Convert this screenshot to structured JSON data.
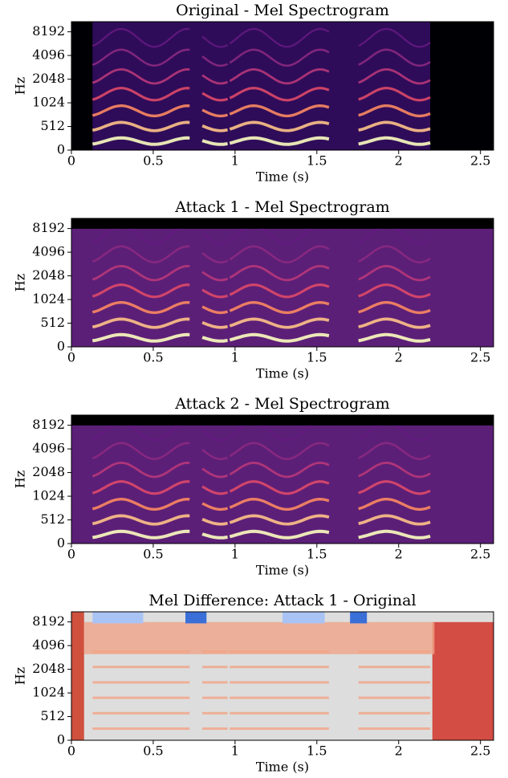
{
  "chart_data": [
    {
      "type": "spectrogram",
      "cmap": "magma",
      "title": "Original - Mel Spectrogram",
      "xlabel": "Time (s)",
      "ylabel": "Hz",
      "xlim": [
        0,
        2.58
      ],
      "xticks": [
        0,
        0.5,
        1,
        1.5,
        2,
        2.5
      ],
      "ylim": [
        0,
        11025
      ],
      "yscale": "symlog",
      "ylinthresh": 512,
      "yticks": [
        0,
        512,
        1024,
        2048,
        4096,
        8192
      ]
    },
    {
      "type": "spectrogram",
      "cmap": "magma",
      "title": "Attack 1 - Mel Spectrogram",
      "xlabel": "Time (s)",
      "ylabel": "Hz",
      "xlim": [
        0,
        2.58
      ],
      "xticks": [
        0,
        0.5,
        1,
        1.5,
        2,
        2.5
      ],
      "ylim": [
        0,
        11025
      ],
      "yscale": "symlog",
      "ylinthresh": 512,
      "yticks": [
        0,
        512,
        1024,
        2048,
        4096,
        8192
      ]
    },
    {
      "type": "spectrogram",
      "cmap": "magma",
      "title": "Attack 2 - Mel Spectrogram",
      "xlabel": "Time (s)",
      "ylabel": "Hz",
      "xlim": [
        0,
        2.58
      ],
      "xticks": [
        0,
        0.5,
        1,
        1.5,
        2,
        2.5
      ],
      "ylim": [
        0,
        11025
      ],
      "yscale": "symlog",
      "ylinthresh": 512,
      "yticks": [
        0,
        512,
        1024,
        2048,
        4096,
        8192
      ]
    },
    {
      "type": "spectrogram",
      "cmap": "coolwarm",
      "title": "Mel Difference: Attack 1 - Original",
      "xlabel": "Time (s)",
      "ylabel": "Hz",
      "xlim": [
        0,
        2.58
      ],
      "xticks": [
        0,
        0.5,
        1,
        1.5,
        2,
        2.5
      ],
      "ylim": [
        0,
        11025
      ],
      "yscale": "symlog",
      "ylinthresh": 512,
      "yticks": [
        0,
        512,
        1024,
        2048,
        4096,
        8192
      ]
    }
  ]
}
